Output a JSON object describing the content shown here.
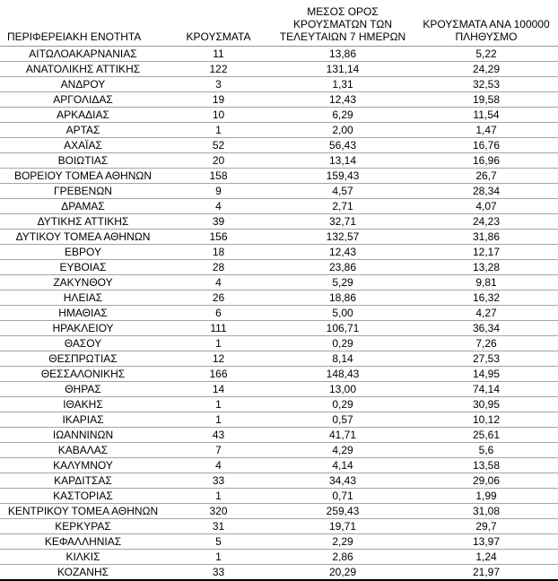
{
  "table": {
    "columns": [
      {
        "id": "region",
        "label": "ΠΕΡΙΦΕΡΕΙΑΚΗ ΕΝΟΤΗΤΑ"
      },
      {
        "id": "cases",
        "label": "ΚΡΟΥΣΜΑΤΑ"
      },
      {
        "id": "avg7",
        "label": "ΜΕΣΟΣ ΟΡΟΣ\nΚΡΟΥΣΜΑΤΩΝ ΤΩΝ\nΤΕΛΕΥΤΑΙΩΝ 7 ΗΜΕΡΩΝ"
      },
      {
        "id": "per100k",
        "label": "ΚΡΟΥΣΜΑΤΑ ΑΝΑ 100000\nΠΛΗΘΥΣΜΟ"
      }
    ],
    "rows": [
      [
        "ΑΙΤΩΛΟΑΚΑΡΝΑΝΙΑΣ",
        "11",
        "13,86",
        "5,22"
      ],
      [
        "ΑΝΑΤΟΛΙΚΗΣ ΑΤΤΙΚΗΣ",
        "122",
        "131,14",
        "24,29"
      ],
      [
        "ΑΝΔΡΟΥ",
        "3",
        "1,31",
        "32,53"
      ],
      [
        "ΑΡΓΟΛΙΔΑΣ",
        "19",
        "12,43",
        "19,58"
      ],
      [
        "ΑΡΚΑΔΙΑΣ",
        "10",
        "6,29",
        "11,54"
      ],
      [
        "ΑΡΤΑΣ",
        "1",
        "2,00",
        "1,47"
      ],
      [
        "ΑΧΑΪΑΣ",
        "52",
        "56,43",
        "16,76"
      ],
      [
        "ΒΟΙΩΤΙΑΣ",
        "20",
        "13,14",
        "16,96"
      ],
      [
        "ΒΟΡΕΙΟΥ ΤΟΜΕΑ ΑΘΗΝΩΝ",
        "158",
        "159,43",
        "26,7"
      ],
      [
        "ΓΡΕΒΕΝΩΝ",
        "9",
        "4,57",
        "28,34"
      ],
      [
        "ΔΡΑΜΑΣ",
        "4",
        "2,71",
        "4,07"
      ],
      [
        "ΔΥΤΙΚΗΣ ΑΤΤΙΚΗΣ",
        "39",
        "32,71",
        "24,23"
      ],
      [
        "ΔΥΤΙΚΟΥ ΤΟΜΕΑ ΑΘΗΝΩΝ",
        "156",
        "132,57",
        "31,86"
      ],
      [
        "ΕΒΡΟΥ",
        "18",
        "12,43",
        "12,17"
      ],
      [
        "ΕΥΒΟΙΑΣ",
        "28",
        "23,86",
        "13,28"
      ],
      [
        "ΖΑΚΥΝΘΟΥ",
        "4",
        "5,29",
        "9,81"
      ],
      [
        "ΗΛΕΙΑΣ",
        "26",
        "18,86",
        "16,32"
      ],
      [
        "ΗΜΑΘΙΑΣ",
        "6",
        "5,00",
        "4,27"
      ],
      [
        "ΗΡΑΚΛΕΙΟΥ",
        "111",
        "106,71",
        "36,34"
      ],
      [
        "ΘΑΣΟΥ",
        "1",
        "0,29",
        "7,26"
      ],
      [
        "ΘΕΣΠΡΩΤΙΑΣ",
        "12",
        "8,14",
        "27,53"
      ],
      [
        "ΘΕΣΣΑΛΟΝΙΚΗΣ",
        "166",
        "148,43",
        "14,95"
      ],
      [
        "ΘΗΡΑΣ",
        "14",
        "13,00",
        "74,14"
      ],
      [
        "ΙΘΑΚΗΣ",
        "1",
        "0,29",
        "30,95"
      ],
      [
        "ΙΚΑΡΙΑΣ",
        "1",
        "0,57",
        "10,12"
      ],
      [
        "ΙΩΑΝΝΙΝΩΝ",
        "43",
        "41,71",
        "25,61"
      ],
      [
        "ΚΑΒΑΛΑΣ",
        "7",
        "4,29",
        "5,6"
      ],
      [
        "ΚΑΛΥΜΝΟΥ",
        "4",
        "4,14",
        "13,58"
      ],
      [
        "ΚΑΡΔΙΤΣΑΣ",
        "33",
        "34,43",
        "29,06"
      ],
      [
        "ΚΑΣΤΟΡΙΑΣ",
        "1",
        "0,71",
        "1,99"
      ],
      [
        "ΚΕΝΤΡΙΚΟΥ ΤΟΜΕΑ ΑΘΗΝΩΝ",
        "320",
        "259,43",
        "31,08"
      ],
      [
        "ΚΕΡΚΥΡΑΣ",
        "31",
        "19,71",
        "29,7"
      ],
      [
        "ΚΕΦΑΛΛΗΝΙΑΣ",
        "5",
        "2,29",
        "13,97"
      ],
      [
        "ΚΙΛΚΙΣ",
        "1",
        "2,86",
        "1,24"
      ],
      [
        "ΚΟΖΑΝΗΣ",
        "33",
        "20,29",
        "21,97"
      ]
    ]
  }
}
